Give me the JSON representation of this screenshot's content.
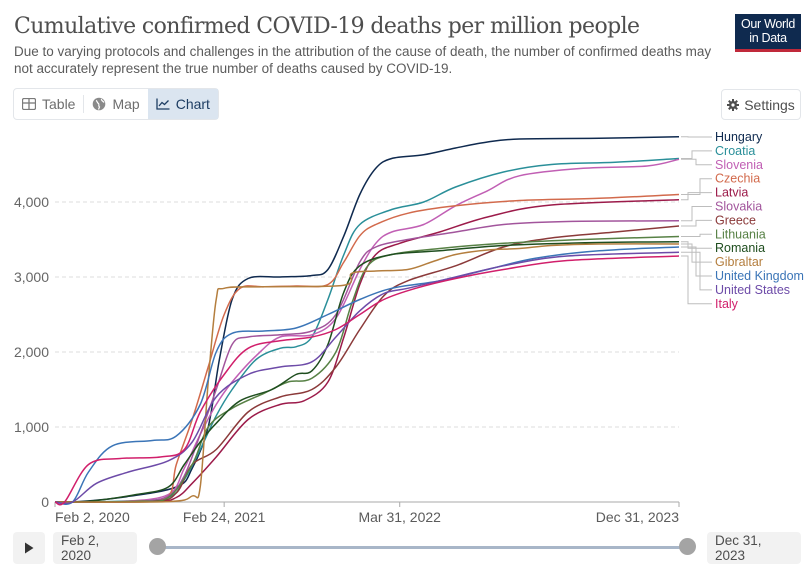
{
  "header": {
    "title": "Cumulative confirmed COVID-19 deaths per million people",
    "subtitle": "Due to varying protocols and challenges in the attribution of the cause of death, the number of confirmed deaths may not accurately represent the true number of deaths caused by COVID-19.",
    "logo_line1": "Our World",
    "logo_line2": "in Data"
  },
  "tabs": [
    {
      "label": "Table",
      "icon": "table-icon",
      "active": false
    },
    {
      "label": "Map",
      "icon": "globe-icon",
      "active": false
    },
    {
      "label": "Chart",
      "icon": "line-chart-icon",
      "active": true
    }
  ],
  "settings_label": "Settings",
  "timeline": {
    "start_label": "Feb 2, 2020",
    "end_label": "Dec 31, 2023",
    "start_fraction": 0,
    "end_fraction": 1
  },
  "chart_data": {
    "type": "line",
    "title": "Cumulative confirmed COVID-19 deaths per million people",
    "xlabel": "",
    "ylabel": "",
    "x_range_years": [
      2020.09,
      2024.0
    ],
    "ylim": [
      0,
      4900
    ],
    "yticks": [
      0,
      1000,
      2000,
      3000,
      4000
    ],
    "ytick_labels": [
      "0",
      "1,000",
      "2,000",
      "3,000",
      "4,000"
    ],
    "xticks": [
      2020.09,
      2021.15,
      2022.25,
      2024.0
    ],
    "xtick_labels": [
      "Feb 2, 2020",
      "Feb 24, 2021",
      "Mar 31, 2022",
      "Dec 31, 2023"
    ],
    "grid": "horizontal-dashed",
    "legend": "right",
    "series": [
      {
        "name": "Hungary",
        "color": "#0f2a4f",
        "points": [
          [
            2020.09,
            0
          ],
          [
            2020.2,
            0
          ],
          [
            2020.5,
            60
          ],
          [
            2020.85,
            200
          ],
          [
            2020.95,
            450
          ],
          [
            2021.05,
            1000
          ],
          [
            2021.12,
            1900
          ],
          [
            2021.2,
            2700
          ],
          [
            2021.3,
            2980
          ],
          [
            2021.5,
            3000
          ],
          [
            2021.7,
            3020
          ],
          [
            2021.8,
            3100
          ],
          [
            2021.9,
            3550
          ],
          [
            2022.0,
            4100
          ],
          [
            2022.1,
            4450
          ],
          [
            2022.2,
            4580
          ],
          [
            2022.4,
            4630
          ],
          [
            2022.6,
            4720
          ],
          [
            2022.8,
            4800
          ],
          [
            2023.0,
            4840
          ],
          [
            2023.5,
            4850
          ],
          [
            2024.0,
            4870
          ]
        ]
      },
      {
        "name": "Croatia",
        "color": "#2a8f99",
        "points": [
          [
            2020.09,
            0
          ],
          [
            2020.5,
            10
          ],
          [
            2020.8,
            60
          ],
          [
            2020.9,
            300
          ],
          [
            2021.0,
            700
          ],
          [
            2021.1,
            1150
          ],
          [
            2021.2,
            1500
          ],
          [
            2021.35,
            1900
          ],
          [
            2021.5,
            2050
          ],
          [
            2021.6,
            2070
          ],
          [
            2021.7,
            2200
          ],
          [
            2021.8,
            2700
          ],
          [
            2021.9,
            3300
          ],
          [
            2022.0,
            3700
          ],
          [
            2022.2,
            3900
          ],
          [
            2022.4,
            4000
          ],
          [
            2022.6,
            4200
          ],
          [
            2022.9,
            4400
          ],
          [
            2023.2,
            4500
          ],
          [
            2023.6,
            4530
          ],
          [
            2024.0,
            4580
          ]
        ]
      },
      {
        "name": "Slovenia",
        "color": "#c15fb4",
        "points": [
          [
            2020.09,
            0
          ],
          [
            2020.5,
            5
          ],
          [
            2020.8,
            100
          ],
          [
            2020.9,
            450
          ],
          [
            2021.0,
            900
          ],
          [
            2021.1,
            1300
          ],
          [
            2021.2,
            1600
          ],
          [
            2021.35,
            1950
          ],
          [
            2021.5,
            2200
          ],
          [
            2021.7,
            2230
          ],
          [
            2021.85,
            2450
          ],
          [
            2022.0,
            3100
          ],
          [
            2022.1,
            3450
          ],
          [
            2022.2,
            3600
          ],
          [
            2022.4,
            3700
          ],
          [
            2022.6,
            3950
          ],
          [
            2022.8,
            4150
          ],
          [
            2023.0,
            4350
          ],
          [
            2023.4,
            4450
          ],
          [
            2023.8,
            4480
          ],
          [
            2024.0,
            4570
          ]
        ]
      },
      {
        "name": "Czechia",
        "color": "#d26a4c",
        "points": [
          [
            2020.09,
            0
          ],
          [
            2020.6,
            10
          ],
          [
            2020.8,
            80
          ],
          [
            2020.85,
            500
          ],
          [
            2020.95,
            1100
          ],
          [
            2021.05,
            1800
          ],
          [
            2021.15,
            2500
          ],
          [
            2021.25,
            2850
          ],
          [
            2021.4,
            2870
          ],
          [
            2021.6,
            2880
          ],
          [
            2021.8,
            2900
          ],
          [
            2021.9,
            3200
          ],
          [
            2022.0,
            3550
          ],
          [
            2022.1,
            3700
          ],
          [
            2022.3,
            3850
          ],
          [
            2022.6,
            3950
          ],
          [
            2023.0,
            4020
          ],
          [
            2023.5,
            4050
          ],
          [
            2024.0,
            4100
          ]
        ]
      },
      {
        "name": "Latvia",
        "color": "#9c1b4a",
        "points": [
          [
            2020.09,
            0
          ],
          [
            2020.7,
            5
          ],
          [
            2020.85,
            60
          ],
          [
            2020.95,
            250
          ],
          [
            2021.1,
            600
          ],
          [
            2021.3,
            1100
          ],
          [
            2021.5,
            1300
          ],
          [
            2021.65,
            1350
          ],
          [
            2021.8,
            1600
          ],
          [
            2021.9,
            2200
          ],
          [
            2022.0,
            2900
          ],
          [
            2022.1,
            3300
          ],
          [
            2022.25,
            3450
          ],
          [
            2022.5,
            3600
          ],
          [
            2022.8,
            3800
          ],
          [
            2023.2,
            3960
          ],
          [
            2024.0,
            4030
          ]
        ]
      },
      {
        "name": "Slovakia",
        "color": "#a2559c",
        "points": [
          [
            2020.09,
            0
          ],
          [
            2020.6,
            5
          ],
          [
            2020.8,
            80
          ],
          [
            2020.9,
            350
          ],
          [
            2021.0,
            900
          ],
          [
            2021.1,
            1500
          ],
          [
            2021.2,
            2100
          ],
          [
            2021.3,
            2200
          ],
          [
            2021.5,
            2230
          ],
          [
            2021.7,
            2280
          ],
          [
            2021.85,
            2500
          ],
          [
            2022.0,
            3200
          ],
          [
            2022.1,
            3400
          ],
          [
            2022.3,
            3500
          ],
          [
            2022.6,
            3600
          ],
          [
            2022.9,
            3700
          ],
          [
            2023.3,
            3740
          ],
          [
            2024.0,
            3750
          ]
        ]
      },
      {
        "name": "Greece",
        "color": "#8b3a3a",
        "points": [
          [
            2020.09,
            0
          ],
          [
            2020.7,
            10
          ],
          [
            2020.85,
            120
          ],
          [
            2020.95,
            500
          ],
          [
            2021.1,
            700
          ],
          [
            2021.3,
            1200
          ],
          [
            2021.5,
            1400
          ],
          [
            2021.7,
            1500
          ],
          [
            2021.85,
            1800
          ],
          [
            2022.0,
            2300
          ],
          [
            2022.15,
            2750
          ],
          [
            2022.3,
            2950
          ],
          [
            2022.6,
            3150
          ],
          [
            2022.9,
            3400
          ],
          [
            2023.2,
            3520
          ],
          [
            2023.6,
            3600
          ],
          [
            2024.0,
            3680
          ]
        ]
      },
      {
        "name": "Lithuania",
        "color": "#578145",
        "points": [
          [
            2020.09,
            0
          ],
          [
            2020.6,
            10
          ],
          [
            2020.8,
            60
          ],
          [
            2020.95,
            500
          ],
          [
            2021.05,
            1000
          ],
          [
            2021.2,
            1250
          ],
          [
            2021.4,
            1450
          ],
          [
            2021.55,
            1600
          ],
          [
            2021.7,
            1650
          ],
          [
            2021.85,
            2000
          ],
          [
            2021.95,
            2650
          ],
          [
            2022.05,
            3150
          ],
          [
            2022.2,
            3300
          ],
          [
            2022.5,
            3380
          ],
          [
            2022.9,
            3450
          ],
          [
            2023.4,
            3500
          ],
          [
            2024.0,
            3540
          ]
        ]
      },
      {
        "name": "Romania",
        "color": "#1f4e1f",
        "points": [
          [
            2020.09,
            0
          ],
          [
            2020.3,
            10
          ],
          [
            2020.6,
            100
          ],
          [
            2020.8,
            200
          ],
          [
            2020.9,
            500
          ],
          [
            2021.0,
            800
          ],
          [
            2021.1,
            1050
          ],
          [
            2021.25,
            1350
          ],
          [
            2021.45,
            1500
          ],
          [
            2021.6,
            1700
          ],
          [
            2021.7,
            1750
          ],
          [
            2021.8,
            2100
          ],
          [
            2021.9,
            2800
          ],
          [
            2022.0,
            3150
          ],
          [
            2022.2,
            3300
          ],
          [
            2022.5,
            3350
          ],
          [
            2022.9,
            3420
          ],
          [
            2023.5,
            3460
          ],
          [
            2024.0,
            3470
          ]
        ]
      },
      {
        "name": "Gibraltar",
        "color": "#b47e3e",
        "points": [
          [
            2020.09,
            0
          ],
          [
            2020.8,
            5
          ],
          [
            2020.95,
            80
          ],
          [
            2021.0,
            200
          ],
          [
            2021.05,
            1600
          ],
          [
            2021.1,
            2700
          ],
          [
            2021.15,
            2850
          ],
          [
            2021.4,
            2870
          ],
          [
            2021.9,
            2890
          ],
          [
            2021.95,
            3050
          ],
          [
            2022.1,
            3080
          ],
          [
            2022.3,
            3100
          ],
          [
            2022.45,
            3200
          ],
          [
            2022.6,
            3300
          ],
          [
            2022.8,
            3360
          ],
          [
            2023.0,
            3380
          ],
          [
            2023.2,
            3420
          ],
          [
            2023.5,
            3440
          ],
          [
            2024.0,
            3440
          ]
        ]
      },
      {
        "name": "United Kingdom",
        "color": "#3b75b7",
        "points": [
          [
            2020.09,
            0
          ],
          [
            2020.2,
            0
          ],
          [
            2020.3,
            400
          ],
          [
            2020.45,
            750
          ],
          [
            2020.7,
            820
          ],
          [
            2020.85,
            880
          ],
          [
            2021.0,
            1300
          ],
          [
            2021.1,
            2000
          ],
          [
            2021.2,
            2250
          ],
          [
            2021.4,
            2280
          ],
          [
            2021.6,
            2320
          ],
          [
            2021.8,
            2500
          ],
          [
            2022.0,
            2700
          ],
          [
            2022.2,
            2850
          ],
          [
            2022.5,
            2950
          ],
          [
            2022.8,
            3100
          ],
          [
            2023.1,
            3250
          ],
          [
            2023.5,
            3350
          ],
          [
            2024.0,
            3400
          ]
        ]
      },
      {
        "name": "United States",
        "color": "#6d4ba8",
        "points": [
          [
            2020.09,
            0
          ],
          [
            2020.2,
            0
          ],
          [
            2020.35,
            250
          ],
          [
            2020.55,
            400
          ],
          [
            2020.8,
            550
          ],
          [
            2020.95,
            800
          ],
          [
            2021.1,
            1400
          ],
          [
            2021.3,
            1700
          ],
          [
            2021.5,
            1800
          ],
          [
            2021.7,
            1870
          ],
          [
            2021.85,
            2200
          ],
          [
            2022.0,
            2550
          ],
          [
            2022.15,
            2780
          ],
          [
            2022.3,
            2850
          ],
          [
            2022.6,
            3000
          ],
          [
            2022.9,
            3150
          ],
          [
            2023.3,
            3280
          ],
          [
            2024.0,
            3330
          ]
        ]
      },
      {
        "name": "Italy",
        "color": "#d11f6b",
        "points": [
          [
            2020.09,
            0
          ],
          [
            2020.15,
            0
          ],
          [
            2020.3,
            500
          ],
          [
            2020.5,
            580
          ],
          [
            2020.75,
            600
          ],
          [
            2020.9,
            700
          ],
          [
            2021.0,
            1200
          ],
          [
            2021.15,
            1700
          ],
          [
            2021.3,
            2050
          ],
          [
            2021.5,
            2150
          ],
          [
            2021.7,
            2200
          ],
          [
            2021.85,
            2300
          ],
          [
            2022.0,
            2500
          ],
          [
            2022.15,
            2700
          ],
          [
            2022.35,
            2850
          ],
          [
            2022.6,
            2980
          ],
          [
            2022.9,
            3100
          ],
          [
            2023.3,
            3220
          ],
          [
            2024.0,
            3280
          ]
        ]
      }
    ]
  }
}
